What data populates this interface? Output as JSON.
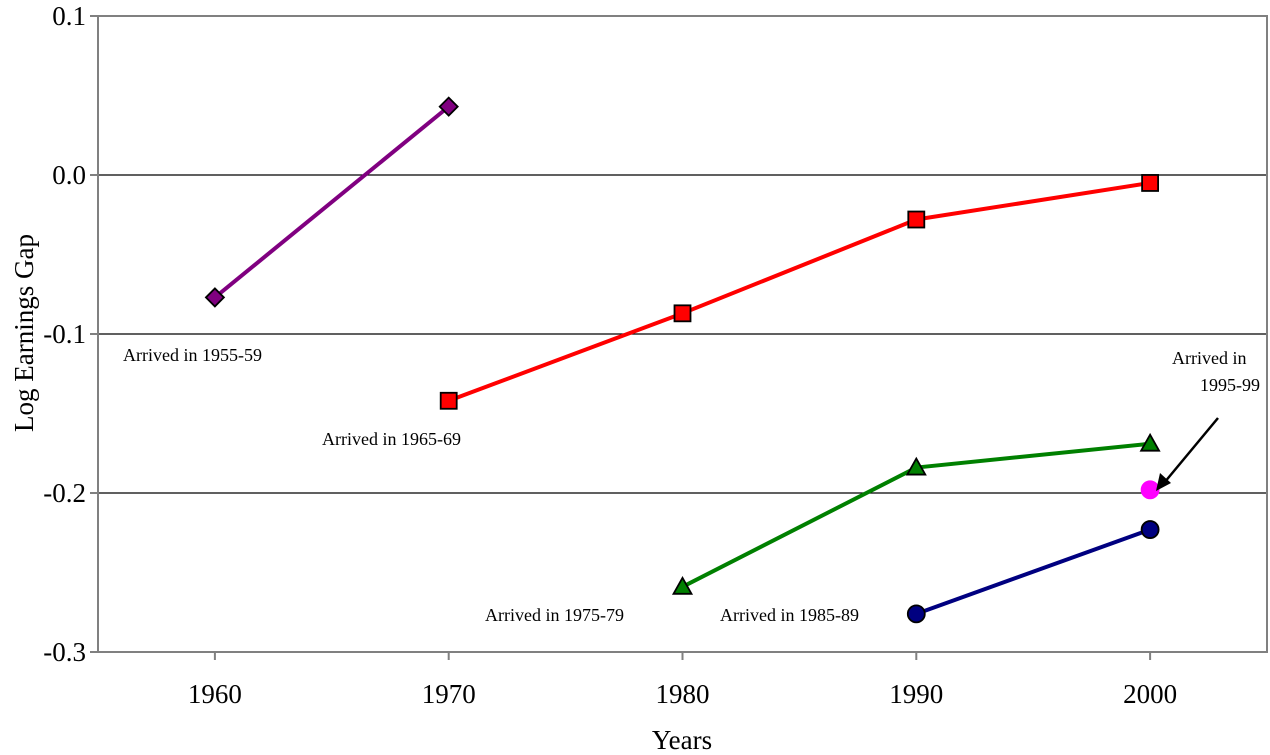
{
  "chart_data": {
    "type": "line",
    "title": "",
    "xlabel": "Years",
    "ylabel": "Log Earnings Gap",
    "xlim": [
      1955,
      2005
    ],
    "ylim": [
      -0.3,
      0.1
    ],
    "x_ticks": [
      1960,
      1970,
      1980,
      1990,
      2000
    ],
    "x_tick_labels": [
      "1960",
      "1970",
      "1980",
      "1990",
      "2000"
    ],
    "y_ticks": [
      -0.3,
      -0.2,
      -0.1,
      0.0,
      0.1
    ],
    "y_tick_labels": [
      "-0.3",
      "-0.2",
      "-0.1",
      "0.0",
      "0.1"
    ],
    "grid": "horizontal",
    "legend": "none",
    "series": [
      {
        "key": "1955-59",
        "color": "#800080",
        "marker": "diamond",
        "x": [
          1960,
          1970
        ],
        "y": [
          -0.077,
          0.043
        ]
      },
      {
        "key": "1965-69",
        "color": "#ff0000",
        "marker": "square",
        "x": [
          1970,
          1980,
          1990,
          2000
        ],
        "y": [
          -0.142,
          -0.087,
          -0.028,
          -0.005
        ]
      },
      {
        "key": "1975-79",
        "color": "#008000",
        "marker": "triangle",
        "x": [
          1980,
          1990,
          2000
        ],
        "y": [
          -0.259,
          -0.184,
          -0.169
        ]
      },
      {
        "key": "1985-89",
        "color": "#000080",
        "marker": "circle",
        "x": [
          1990,
          2000
        ],
        "y": [
          -0.276,
          -0.223
        ]
      },
      {
        "key": "1995-99",
        "color": "#ff00ff",
        "marker": "circle",
        "x": [
          2000
        ],
        "y": [
          -0.198
        ]
      }
    ],
    "annotations": [
      {
        "text": "Arrived in 1955-59"
      },
      {
        "text": "Arrived in 1965-69"
      },
      {
        "text": "Arrived in 1975-79"
      },
      {
        "text": "Arrived in 1985-89"
      },
      {
        "text_line1": "Arrived in",
        "text_line2": "1995-99"
      }
    ]
  }
}
